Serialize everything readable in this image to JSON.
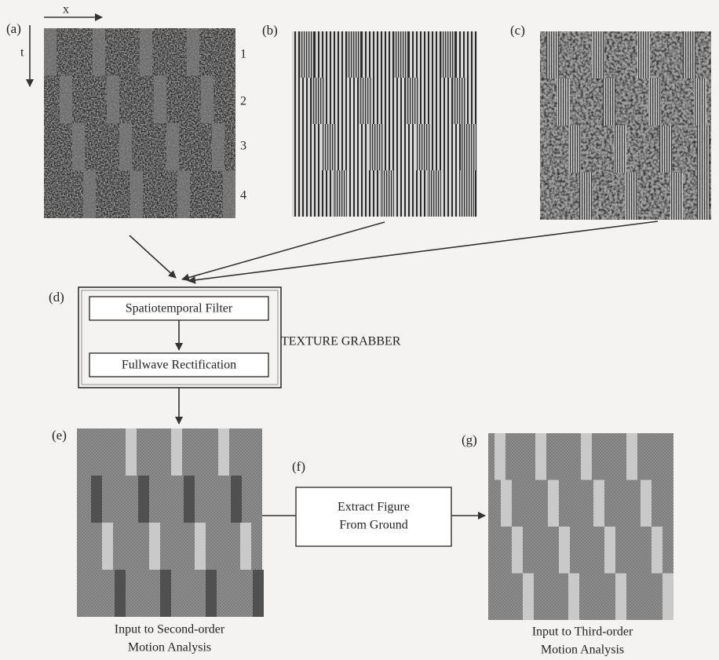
{
  "panels": {
    "a": {
      "label": "(a)",
      "x_axis": "x",
      "t_axis": "t",
      "rows": [
        "1",
        "2",
        "3",
        "4"
      ]
    },
    "b": {
      "label": "(b)"
    },
    "c": {
      "label": "(c)"
    },
    "d": {
      "label": "(d)",
      "steps": [
        "Spatiotemporal Filter",
        "Fullwave Rectification"
      ],
      "name": "TEXTURE GRABBER"
    },
    "e": {
      "label": "(e)",
      "caption": [
        "Input to Second-order",
        "Motion Analysis"
      ]
    },
    "f": {
      "label": "(f)",
      "box": [
        "Extract Figure",
        "From Ground"
      ]
    },
    "g": {
      "label": "(g)",
      "caption": [
        "Input to Third-order",
        "Motion Analysis"
      ]
    }
  }
}
